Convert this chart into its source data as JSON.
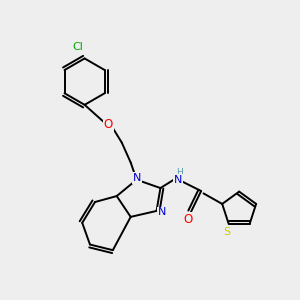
{
  "bg_color": "#eeeeee",
  "atom_colors": {
    "C": "#000000",
    "N": "#0000cc",
    "O": "#ff0000",
    "S": "#cccc00",
    "Cl": "#00aa00",
    "H": "#5599aa"
  },
  "lw": 1.4,
  "fontsize": 7.5
}
